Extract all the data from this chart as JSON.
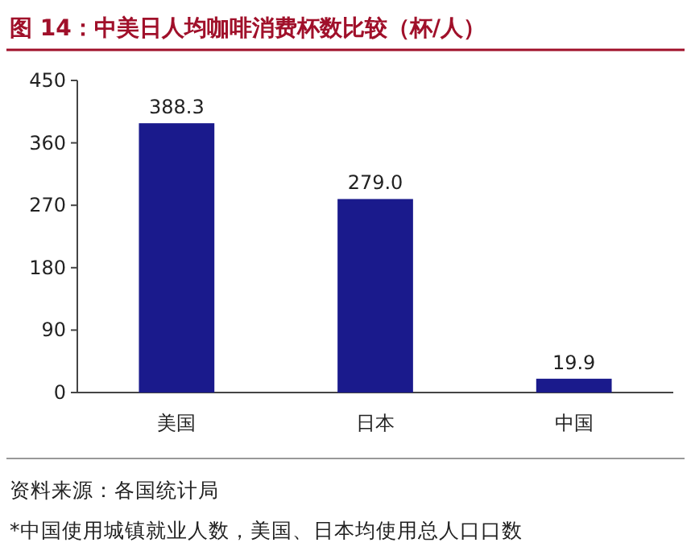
{
  "chart_data": {
    "type": "bar",
    "title": "图 14：中美日人均咖啡消费杯数比较（杯/人）",
    "categories": [
      "美国",
      "日本",
      "中国"
    ],
    "values": [
      388.3,
      279.0,
      19.9
    ],
    "value_labels": [
      "388.3",
      "279.0",
      "19.9"
    ],
    "color": "#1a1a8c",
    "ylim": [
      0,
      450
    ],
    "yticks": [
      0,
      90,
      180,
      270,
      360,
      450
    ],
    "annotations": [
      "资料来源：各国统计局",
      "*中国使用城镇就业人数，美国、日本均使用总人口口数"
    ]
  }
}
